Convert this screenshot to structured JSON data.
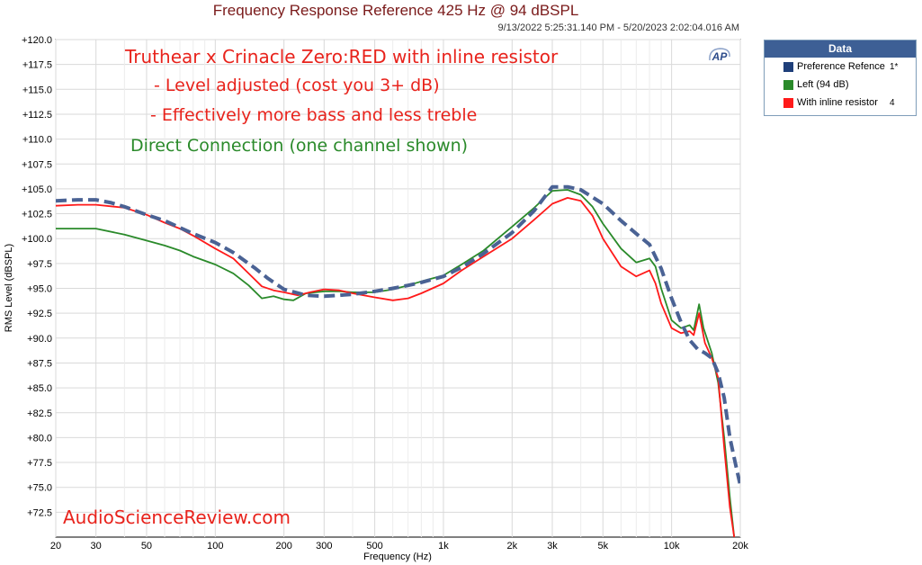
{
  "chart_data": {
    "type": "line",
    "title": "Frequency Response Reference 425 Hz @ 94 dBSPL",
    "timestamp": "9/13/2022 5:25:31.140 PM - 5/20/2023 2:02:04.016 AM",
    "xlabel": "Frequency (Hz)",
    "ylabel": "RMS Level (dBSPL)",
    "x_scale": "log",
    "xlim": [
      20,
      20000
    ],
    "ylim": [
      70,
      120
    ],
    "grid": true,
    "x_ticks": [
      {
        "value": 20,
        "label": "20"
      },
      {
        "value": 30,
        "label": "30"
      },
      {
        "value": 50,
        "label": "50"
      },
      {
        "value": 100,
        "label": "100"
      },
      {
        "value": 200,
        "label": "200"
      },
      {
        "value": 300,
        "label": "300"
      },
      {
        "value": 500,
        "label": "500"
      },
      {
        "value": 1000,
        "label": "1k"
      },
      {
        "value": 2000,
        "label": "2k"
      },
      {
        "value": 3000,
        "label": "3k"
      },
      {
        "value": 5000,
        "label": "5k"
      },
      {
        "value": 10000,
        "label": "10k"
      },
      {
        "value": 20000,
        "label": "20k"
      }
    ],
    "x_minor_ticks": [
      40,
      60,
      70,
      80,
      90,
      400,
      600,
      700,
      800,
      900,
      4000,
      6000,
      7000,
      8000,
      9000
    ],
    "y_ticks": [
      {
        "value": 120,
        "label": "+120.0"
      },
      {
        "value": 117.5,
        "label": "+117.5"
      },
      {
        "value": 115,
        "label": "+115.0"
      },
      {
        "value": 112.5,
        "label": "+112.5"
      },
      {
        "value": 110,
        "label": "+110.0"
      },
      {
        "value": 107.5,
        "label": "+107.5"
      },
      {
        "value": 105,
        "label": "+105.0"
      },
      {
        "value": 102.5,
        "label": "+102.5"
      },
      {
        "value": 100,
        "label": "+100.0"
      },
      {
        "value": 97.5,
        "label": "+97.5"
      },
      {
        "value": 95,
        "label": "+95.0"
      },
      {
        "value": 92.5,
        "label": "+92.5"
      },
      {
        "value": 90,
        "label": "+90.0"
      },
      {
        "value": 87.5,
        "label": "+87.5"
      },
      {
        "value": 85,
        "label": "+85.0"
      },
      {
        "value": 82.5,
        "label": "+82.5"
      },
      {
        "value": 80,
        "label": "+80.0"
      },
      {
        "value": 77.5,
        "label": "+77.5"
      },
      {
        "value": 75,
        "label": "+75.0"
      },
      {
        "value": 72.5,
        "label": "+72.5"
      }
    ],
    "legend": {
      "title": "Data",
      "placement": "right-top",
      "entries": [
        {
          "label": "Preference Refence",
          "channel": "1*",
          "color": "#1f3f7a"
        },
        {
          "label": "Left (94 dB)",
          "channel": "",
          "color": "#2a8a2a"
        },
        {
          "label": "With inline resistor",
          "channel": "4",
          "color": "#ff1a1a"
        }
      ]
    },
    "series": [
      {
        "name": "Preference Refence",
        "color": "#4a6294",
        "style": "dashed",
        "points": [
          [
            20,
            103.8
          ],
          [
            25,
            103.9
          ],
          [
            30,
            103.9
          ],
          [
            35,
            103.6
          ],
          [
            40,
            103.2
          ],
          [
            50,
            102.4
          ],
          [
            60,
            101.8
          ],
          [
            70,
            101.1
          ],
          [
            80,
            100.5
          ],
          [
            100,
            99.6
          ],
          [
            120,
            98.6
          ],
          [
            150,
            97.0
          ],
          [
            170,
            96.0
          ],
          [
            200,
            94.9
          ],
          [
            250,
            94.3
          ],
          [
            300,
            94.2
          ],
          [
            350,
            94.3
          ],
          [
            400,
            94.4
          ],
          [
            500,
            94.7
          ],
          [
            600,
            95.0
          ],
          [
            700,
            95.3
          ],
          [
            800,
            95.6
          ],
          [
            1000,
            96.2
          ],
          [
            1200,
            97.1
          ],
          [
            1500,
            98.5
          ],
          [
            2000,
            100.6
          ],
          [
            2500,
            102.8
          ],
          [
            3000,
            105.2
          ],
          [
            3500,
            105.2
          ],
          [
            4000,
            104.9
          ],
          [
            5000,
            103.5
          ],
          [
            6000,
            101.8
          ],
          [
            7000,
            100.5
          ],
          [
            8000,
            99.4
          ],
          [
            9000,
            97.0
          ],
          [
            10000,
            94.0
          ],
          [
            11000,
            91.6
          ],
          [
            12000,
            89.8
          ],
          [
            13000,
            88.9
          ],
          [
            14000,
            88.5
          ],
          [
            15000,
            88.0
          ],
          [
            16000,
            86.5
          ],
          [
            17000,
            84.0
          ],
          [
            18000,
            80.0
          ],
          [
            19000,
            77.5
          ],
          [
            20000,
            75.2
          ]
        ]
      },
      {
        "name": "Left (94 dB)",
        "color": "#2a8a2a",
        "style": "solid",
        "points": [
          [
            20,
            101.0
          ],
          [
            30,
            101.0
          ],
          [
            40,
            100.4
          ],
          [
            50,
            99.8
          ],
          [
            60,
            99.3
          ],
          [
            70,
            98.8
          ],
          [
            80,
            98.2
          ],
          [
            100,
            97.4
          ],
          [
            120,
            96.5
          ],
          [
            140,
            95.3
          ],
          [
            160,
            94.0
          ],
          [
            180,
            94.2
          ],
          [
            200,
            93.9
          ],
          [
            220,
            93.8
          ],
          [
            250,
            94.5
          ],
          [
            300,
            94.7
          ],
          [
            350,
            94.7
          ],
          [
            400,
            94.6
          ],
          [
            500,
            94.6
          ],
          [
            600,
            94.9
          ],
          [
            700,
            95.3
          ],
          [
            800,
            95.7
          ],
          [
            1000,
            96.3
          ],
          [
            1200,
            97.4
          ],
          [
            1500,
            98.8
          ],
          [
            2000,
            101.2
          ],
          [
            2500,
            103.1
          ],
          [
            3000,
            104.8
          ],
          [
            3500,
            104.9
          ],
          [
            4000,
            104.4
          ],
          [
            4500,
            103.2
          ],
          [
            5000,
            101.5
          ],
          [
            6000,
            99.0
          ],
          [
            7000,
            97.6
          ],
          [
            8000,
            98.0
          ],
          [
            8500,
            97.2
          ],
          [
            9000,
            95.0
          ],
          [
            10000,
            91.8
          ],
          [
            11000,
            91.0
          ],
          [
            12000,
            91.3
          ],
          [
            12500,
            90.8
          ],
          [
            13200,
            93.4
          ],
          [
            13800,
            91.0
          ],
          [
            15000,
            88.5
          ],
          [
            16000,
            85.5
          ],
          [
            17000,
            80.0
          ],
          [
            18000,
            74.0
          ],
          [
            18800,
            70.0
          ]
        ]
      },
      {
        "name": "With inline resistor",
        "color": "#ff1a1a",
        "style": "solid",
        "points": [
          [
            20,
            103.3
          ],
          [
            25,
            103.4
          ],
          [
            30,
            103.4
          ],
          [
            40,
            103.1
          ],
          [
            50,
            102.4
          ],
          [
            60,
            101.6
          ],
          [
            70,
            101.0
          ],
          [
            80,
            100.3
          ],
          [
            100,
            99.0
          ],
          [
            120,
            98.0
          ],
          [
            140,
            96.5
          ],
          [
            160,
            95.2
          ],
          [
            180,
            94.8
          ],
          [
            200,
            94.6
          ],
          [
            230,
            94.3
          ],
          [
            260,
            94.6
          ],
          [
            300,
            94.9
          ],
          [
            350,
            94.8
          ],
          [
            400,
            94.5
          ],
          [
            500,
            94.1
          ],
          [
            600,
            93.8
          ],
          [
            700,
            94.0
          ],
          [
            800,
            94.5
          ],
          [
            1000,
            95.5
          ],
          [
            1200,
            96.8
          ],
          [
            1500,
            98.2
          ],
          [
            2000,
            100.0
          ],
          [
            2500,
            101.9
          ],
          [
            3000,
            103.5
          ],
          [
            3500,
            104.1
          ],
          [
            4000,
            103.8
          ],
          [
            4500,
            102.3
          ],
          [
            5000,
            100.0
          ],
          [
            6000,
            97.2
          ],
          [
            7000,
            96.2
          ],
          [
            8000,
            96.8
          ],
          [
            8500,
            95.5
          ],
          [
            9000,
            93.5
          ],
          [
            10000,
            91.0
          ],
          [
            11000,
            90.5
          ],
          [
            12000,
            90.7
          ],
          [
            12500,
            90.3
          ],
          [
            13200,
            92.5
          ],
          [
            14000,
            89.5
          ],
          [
            15000,
            88.0
          ],
          [
            16000,
            86.0
          ],
          [
            17000,
            79.0
          ],
          [
            18000,
            73.0
          ],
          [
            18800,
            70.0
          ]
        ]
      }
    ],
    "annotations": [
      {
        "text": "Truthear x Crinacle Zero:RED with inline resistor",
        "color": "#e8231c"
      },
      {
        "text": "- Level adjusted (cost you 3+ dB)",
        "color": "#e8231c"
      },
      {
        "text": "- Effectively more bass and less treble",
        "color": "#e8231c"
      },
      {
        "text": "Direct Connection (one channel shown)",
        "color": "#2a8a2a"
      }
    ],
    "watermark": "AudioScienceReview.com",
    "logo_text": "AP"
  }
}
